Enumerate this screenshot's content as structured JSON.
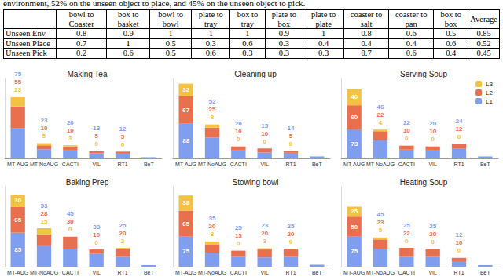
{
  "text_above": "environment, 52% on the unseen object to place, and 45% on the unseen object to pick.",
  "table": {
    "header": [
      null,
      "bowl to Coaster",
      "box to basket",
      "bowl to bowl",
      "plate to tray",
      "box to tray",
      "plate to box",
      "plate to plate",
      "coaster to salt",
      "coaster to pan",
      "box to box",
      "Average"
    ],
    "rows": [
      [
        "Unseen Env",
        0.8,
        0.9,
        1,
        1,
        1,
        0.9,
        1,
        0.8,
        0.6,
        0.5,
        0.85
      ],
      [
        "Unseen Place",
        0.7,
        1,
        0.5,
        0.3,
        0.6,
        0.3,
        0.4,
        0.4,
        0.4,
        0.6,
        0.52
      ],
      [
        "Unseen Pick",
        0.2,
        0.6,
        0.5,
        0.6,
        0.3,
        0.3,
        0.3,
        0.7,
        0.6,
        0.4,
        0.45
      ]
    ]
  },
  "chart_data": [
    {
      "type": "bar",
      "title": "Making Tea",
      "stacked": true,
      "data_labels": true,
      "tick_labels": "x",
      "ylim": [
        0,
        200
      ],
      "categories": [
        "MT-AUG",
        "MT-NoAUG",
        "CACTI",
        "VIL",
        "RT1",
        "BeT"
      ],
      "series": [
        {
          "name": "L1",
          "color": "#7f9ef0",
          "values": [
            75,
            23,
            20,
            13,
            12,
            3
          ],
          "value_labels": [
            "75",
            "23",
            "20",
            "13",
            "12",
            null
          ]
        },
        {
          "name": "L2",
          "color": "#e8704f",
          "values": [
            55,
            10,
            10,
            5,
            5,
            0
          ],
          "value_labels": [
            "55",
            "10",
            "10",
            "5",
            "5",
            null
          ]
        },
        {
          "name": "L3",
          "color": "#f3c243",
          "values": [
            23,
            5,
            3,
            0,
            0,
            0
          ],
          "value_labels": [
            "23",
            "5",
            "3",
            "0",
            "0",
            null
          ]
        }
      ]
    },
    {
      "type": "bar",
      "title": "Cleaning up",
      "stacked": true,
      "data_labels": true,
      "tick_labels": "x",
      "ylim": [
        0,
        200
      ],
      "categories": [
        "MT-AUG",
        "MT-NoAUG",
        "CACTI",
        "VIL",
        "RT1",
        "BeT"
      ],
      "series": [
        {
          "name": "L1",
          "color": "#7f9ef0",
          "values": [
            88,
            52,
            20,
            15,
            14,
            5
          ],
          "value_labels": [
            "88",
            "52",
            "20",
            "15",
            "14",
            null
          ]
        },
        {
          "name": "L2",
          "color": "#e8704f",
          "values": [
            67,
            25,
            10,
            10,
            5,
            0
          ],
          "value_labels": [
            "67",
            "25",
            "10",
            "10",
            "5",
            null
          ]
        },
        {
          "name": "L3",
          "color": "#f3c243",
          "values": [
            32,
            8,
            0,
            0,
            0,
            0
          ],
          "value_labels": [
            "32",
            "8",
            "0",
            "0",
            "0",
            null
          ]
        }
      ]
    },
    {
      "type": "bar",
      "title": "Serving Soup",
      "stacked": true,
      "data_labels": true,
      "tick_labels": "x",
      "ylim": [
        0,
        200
      ],
      "legend": "top right",
      "categories": [
        "MT-AUG",
        "MT-NoAUG",
        "CACTI",
        "VIL",
        "RT1",
        "BeT"
      ],
      "series": [
        {
          "name": "L1",
          "color": "#7f9ef0",
          "values": [
            73,
            46,
            22,
            20,
            24,
            5
          ],
          "value_labels": [
            "73",
            "46",
            "22",
            "20",
            "24",
            null
          ]
        },
        {
          "name": "L2",
          "color": "#e8704f",
          "values": [
            60,
            22,
            10,
            10,
            12,
            0
          ],
          "value_labels": [
            "60",
            "22",
            "10",
            "10",
            "12",
            null
          ]
        },
        {
          "name": "L3",
          "color": "#f3c243",
          "values": [
            40,
            4,
            0,
            0,
            0,
            0
          ],
          "value_labels": [
            "40",
            "4",
            "0",
            "0",
            "0",
            null
          ]
        }
      ]
    },
    {
      "type": "bar",
      "title": "Baking Prep",
      "stacked": true,
      "data_labels": true,
      "tick_labels": "x",
      "ylim": [
        0,
        200
      ],
      "categories": [
        "MT-AUG",
        "MT-NoAUG",
        "CACTI",
        "VIL",
        "RT1",
        "BeT"
      ],
      "series": [
        {
          "name": "L1",
          "color": "#7f9ef0",
          "values": [
            85,
            53,
            45,
            33,
            25,
            4
          ],
          "value_labels": [
            "85",
            "53",
            "45",
            "33",
            "25",
            null
          ]
        },
        {
          "name": "L2",
          "color": "#e8704f",
          "values": [
            65,
            28,
            30,
            10,
            20,
            0
          ],
          "value_labels": [
            "65",
            "28",
            "30",
            "10",
            "20",
            null
          ]
        },
        {
          "name": "L3",
          "color": "#f3c243",
          "values": [
            30,
            15,
            0,
            0,
            2,
            0
          ],
          "value_labels": [
            "30",
            "15",
            "0",
            "0",
            "2",
            null
          ]
        }
      ]
    },
    {
      "type": "bar",
      "title": "Stowing bowl",
      "stacked": true,
      "data_labels": true,
      "tick_labels": "x",
      "ylim": [
        0,
        200
      ],
      "categories": [
        "MT-AUG",
        "MT-NoAUG",
        "CACTI",
        "VIL",
        "RT1",
        "BeT"
      ],
      "series": [
        {
          "name": "L1",
          "color": "#7f9ef0",
          "values": [
            75,
            35,
            25,
            23,
            25,
            5
          ],
          "value_labels": [
            "75",
            "35",
            "25",
            "23",
            "25",
            null
          ]
        },
        {
          "name": "L2",
          "color": "#e8704f",
          "values": [
            65,
            20,
            15,
            20,
            20,
            0
          ],
          "value_labels": [
            "65",
            "20",
            "15",
            "20",
            "20",
            null
          ]
        },
        {
          "name": "L3",
          "color": "#f3c243",
          "values": [
            38,
            8,
            0,
            3,
            0,
            0
          ],
          "value_labels": [
            "38",
            "8",
            "0",
            "3",
            "0",
            null
          ]
        }
      ]
    },
    {
      "type": "bar",
      "title": "Heating Soup",
      "stacked": true,
      "data_labels": true,
      "tick_labels": "x",
      "ylim": [
        0,
        200
      ],
      "categories": [
        "MT-AUG",
        "MT-NoAUG",
        "CACTI",
        "VIL",
        "RT1",
        "BeT"
      ],
      "series": [
        {
          "name": "L1",
          "color": "#7f9ef0",
          "values": [
            75,
            45,
            25,
            25,
            12,
            4
          ],
          "value_labels": [
            "75",
            "45",
            "25",
            "25",
            "12",
            null
          ]
        },
        {
          "name": "L2",
          "color": "#e8704f",
          "values": [
            50,
            23,
            22,
            20,
            10,
            0
          ],
          "value_labels": [
            "50",
            "23",
            "22",
            "20",
            "10",
            null
          ]
        },
        {
          "name": "L3",
          "color": "#f3c243",
          "values": [
            25,
            5,
            0,
            0,
            0,
            0
          ],
          "value_labels": [
            "25",
            "5",
            "0",
            "0",
            "0",
            null
          ]
        }
      ]
    }
  ]
}
